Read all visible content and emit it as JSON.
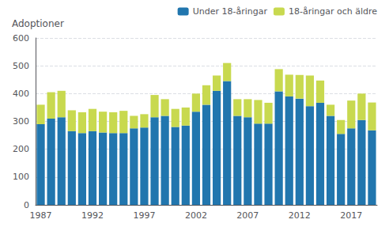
{
  "chart_data": {
    "type": "bar",
    "stacked": true,
    "ylabel": "Adoptioner",
    "categories": [
      "1987",
      null,
      null,
      null,
      null,
      "1992",
      null,
      null,
      null,
      null,
      "1997",
      null,
      null,
      null,
      null,
      "2002",
      null,
      null,
      null,
      null,
      "2007",
      null,
      null,
      null,
      null,
      "2012",
      null,
      null,
      null,
      null,
      "2017",
      null,
      null
    ],
    "series": [
      {
        "name": "Under 18-åringar",
        "color": "#2176ae",
        "values": [
          290,
          310,
          315,
          265,
          258,
          265,
          260,
          258,
          258,
          275,
          278,
          315,
          320,
          280,
          285,
          335,
          360,
          410,
          445,
          320,
          315,
          292,
          292,
          408,
          390,
          382,
          355,
          367,
          320,
          255,
          275,
          305,
          268
        ]
      },
      {
        "name": "18-åringar och äldre",
        "color": "#c8d94f",
        "values": [
          70,
          95,
          95,
          75,
          75,
          80,
          75,
          75,
          80,
          45,
          48,
          80,
          60,
          65,
          65,
          65,
          70,
          55,
          65,
          60,
          65,
          85,
          75,
          80,
          78,
          85,
          110,
          80,
          40,
          50,
          100,
          95,
          100
        ]
      }
    ],
    "ylim": [
      0,
      600
    ],
    "yticks": [
      0,
      100,
      200,
      300,
      400,
      500,
      600
    ],
    "grid": true,
    "legend": "upper right"
  }
}
